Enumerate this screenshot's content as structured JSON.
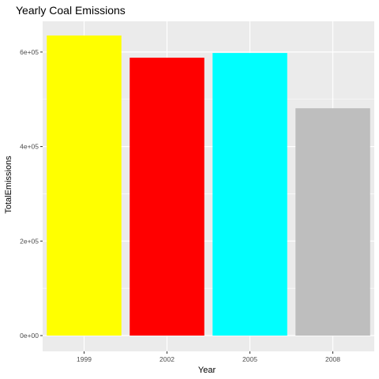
{
  "chart_data": {
    "type": "bar",
    "title": "Yearly Coal Emissions",
    "xlabel": "Year",
    "ylabel": "TotalEmissions",
    "categories": [
      "1999",
      "2002",
      "2005",
      "2008"
    ],
    "values": [
      635000,
      588000,
      598000,
      481000
    ],
    "bar_colors": [
      "#ffff00",
      "#ff0000",
      "#00ffff",
      "#bebebe"
    ],
    "ylim": [
      0,
      665000
    ],
    "yticks": [
      0,
      200000,
      400000,
      600000
    ],
    "ytick_labels": [
      "0e+00",
      "2e+05",
      "4e+05",
      "6e+05"
    ],
    "grid": true,
    "legend": "none",
    "panel_background": "#ebebeb",
    "grid_color": "#ffffff"
  }
}
